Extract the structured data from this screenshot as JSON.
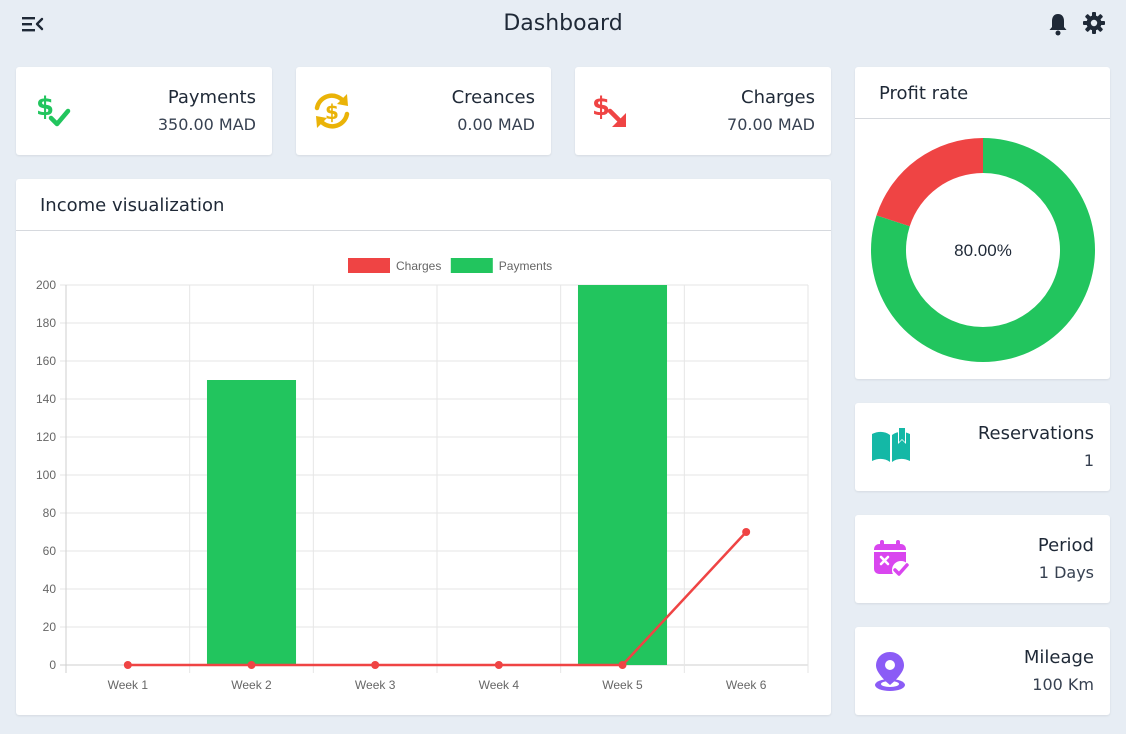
{
  "header": {
    "title": "Dashboard",
    "menu_icon": "menu-collapse-icon",
    "bell_icon": "bell-icon",
    "settings_icon": "gear-icon"
  },
  "stats": {
    "payments": {
      "label": "Payments",
      "value": "350.00 MAD",
      "icon": "dollar-check-icon",
      "color": "#22c55e"
    },
    "creances": {
      "label": "Creances",
      "value": "0.00 MAD",
      "icon": "dollar-refresh-icon",
      "color": "#eab308"
    },
    "charges": {
      "label": "Charges",
      "value": "70.00 MAD",
      "icon": "dollar-arrow-down-icon",
      "color": "#ef4444"
    },
    "reservations": {
      "label": "Reservations",
      "value": "1",
      "icon": "open-book-icon",
      "color": "#14b8a6"
    },
    "period": {
      "label": "Period",
      "value": "1 Days",
      "icon": "calendar-check-icon",
      "color": "#d946ef"
    },
    "mileage": {
      "label": "Mileage",
      "value": "100 Km",
      "icon": "map-pin-icon",
      "color": "#8b5cf6"
    }
  },
  "income_panel": {
    "title": "Income visualization"
  },
  "profit_panel": {
    "title": "Profit rate"
  },
  "chart_data": [
    {
      "type": "bar",
      "title": "Income visualization",
      "categories": [
        "Week 1",
        "Week 2",
        "Week 3",
        "Week 4",
        "Week 5",
        "Week 6"
      ],
      "series": [
        {
          "name": "Charges",
          "type": "line",
          "color": "#ef4444",
          "values": [
            0,
            0,
            0,
            0,
            0,
            70
          ]
        },
        {
          "name": "Payments",
          "type": "bar",
          "color": "#22c55e",
          "values": [
            0,
            150,
            0,
            0,
            200,
            0
          ]
        }
      ],
      "y_ticks": [
        "200",
        "180",
        "160",
        "140",
        "120",
        "100",
        "80",
        "60",
        "40",
        "20",
        "0"
      ],
      "ylim": [
        0,
        200
      ],
      "grid": true,
      "legend": "top-center"
    },
    {
      "type": "pie",
      "title": "Profit rate",
      "labels": [
        "Payments",
        "Charges"
      ],
      "values": [
        80,
        20
      ],
      "colors": [
        "#22c55e",
        "#ef4444"
      ],
      "center_label": "80.00%"
    }
  ]
}
